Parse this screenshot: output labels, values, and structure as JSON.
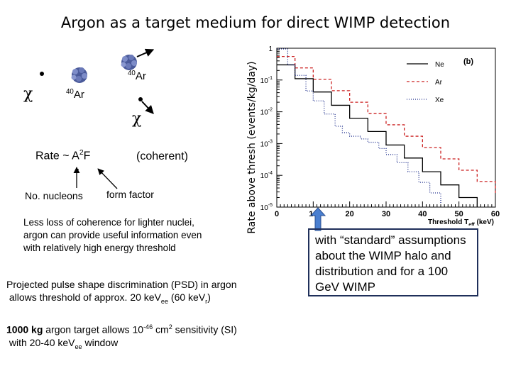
{
  "slide": {
    "title": "Argon as a target medium for direct WIMP detection"
  },
  "diagram": {
    "chi_incoming": "χ",
    "chi_outgoing": "χ",
    "nucleus_label_mass": "40",
    "nucleus_label_element": "Ar",
    "recoil_label_mass": "40",
    "recoil_label_element": "Ar",
    "rate_text": "Rate ~ A",
    "rate_exp": "2",
    "rate_suffix": "F",
    "coherent": "(coherent)",
    "nucleons": "No. nucleons",
    "form_factor": "form factor"
  },
  "text": {
    "coherence": [
      "Less loss of coherence for lighter nuclei,",
      "argon can provide useful information even",
      "with relatively high energy threshold"
    ],
    "psd_line1": "Projected pulse shape discrimination (PSD) in argon",
    "psd_line2_a": "allows threshold of approx. 20 keV",
    "psd_line2_sub1": "ee",
    "psd_line2_b": " (60 keV",
    "psd_line2_sub2": "r",
    "psd_line2_c": ")",
    "target_bold": "1000 kg",
    "target_a": " argon target allows 10",
    "target_exp": "-46",
    "target_b": " cm",
    "target_exp2": "2",
    "target_c": " sensitivity (SI)",
    "target_line2_a": "with 20-40 keV",
    "target_line2_sub": "ee",
    "target_line2_b": " window"
  },
  "callout": {
    "text": "with “standard” assumptions about the WIMP halo and distribution and for a 100 GeV WIMP"
  },
  "chart_data": {
    "type": "line",
    "panel_label": "(b)",
    "ylabel": "Rate above thresh (events/kg/day)",
    "xlabel_main": "Threshold T",
    "xlabel_sub": "eff",
    "xlabel_unit": " (keV)",
    "xlim": [
      0,
      60
    ],
    "ylog": true,
    "ylim": [
      1e-05,
      1
    ],
    "xticks": [
      0,
      10,
      20,
      30,
      40,
      50,
      60
    ],
    "yticks": [
      {
        "value": 1,
        "label": "1",
        "exp": ""
      },
      {
        "value": 0.1,
        "label": "10",
        "exp": "-1"
      },
      {
        "value": 0.01,
        "label": "10",
        "exp": "-2"
      },
      {
        "value": 0.001,
        "label": "10",
        "exp": "-3"
      },
      {
        "value": 0.0001,
        "label": "10",
        "exp": "-4"
      },
      {
        "value": 1e-05,
        "label": "10",
        "exp": "-5"
      }
    ],
    "legend_position": "top-right",
    "series": [
      {
        "name": "Ne",
        "color": "#000000",
        "dash": "",
        "points": [
          [
            0,
            0.3
          ],
          [
            5,
            0.11
          ],
          [
            10,
            0.042
          ],
          [
            15,
            0.016
          ],
          [
            20,
            0.0062
          ],
          [
            25,
            0.0024
          ],
          [
            30,
            0.0009
          ],
          [
            35,
            0.00035
          ],
          [
            40,
            0.00013
          ],
          [
            45,
            5e-05
          ],
          [
            50,
            2e-05
          ],
          [
            55,
            1e-05
          ]
        ]
      },
      {
        "name": "Ar",
        "color": "#cc2222",
        "dash": "4,3",
        "points": [
          [
            0,
            0.55
          ],
          [
            5,
            0.24
          ],
          [
            10,
            0.105
          ],
          [
            15,
            0.046
          ],
          [
            20,
            0.02
          ],
          [
            25,
            0.0088
          ],
          [
            30,
            0.0039
          ],
          [
            35,
            0.0017
          ],
          [
            40,
            0.00075
          ],
          [
            45,
            0.00033
          ],
          [
            50,
            0.000145
          ],
          [
            55,
            6.4e-05
          ],
          [
            60,
            2.8e-05
          ]
        ]
      },
      {
        "name": "Xe",
        "color": "#1a2a8a",
        "dash": "1,2",
        "points": [
          [
            0,
            0.95
          ],
          [
            3,
            0.3
          ],
          [
            5,
            0.14
          ],
          [
            8,
            0.045
          ],
          [
            10,
            0.022
          ],
          [
            13,
            0.0085
          ],
          [
            16,
            0.0035
          ],
          [
            18,
            0.0022
          ],
          [
            20,
            0.0017
          ],
          [
            23,
            0.0014
          ],
          [
            25,
            0.0011
          ],
          [
            28,
            0.0007
          ],
          [
            30,
            0.00045
          ],
          [
            33,
            0.00025
          ],
          [
            36,
            0.00013
          ],
          [
            39,
            6e-05
          ],
          [
            42,
            2.8e-05
          ],
          [
            45,
            1.3e-05
          ]
        ]
      }
    ]
  }
}
